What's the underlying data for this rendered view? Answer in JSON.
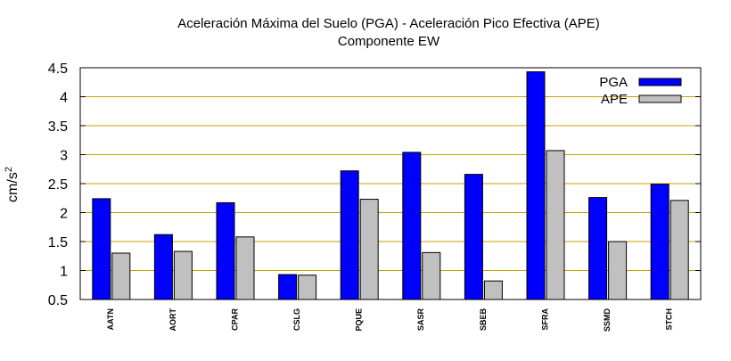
{
  "chart_data": {
    "type": "bar",
    "title": "Aceleración Máxima del Suelo (PGA) -  Aceleración Pico Efectiva (APE)",
    "subtitle": "Componente EW",
    "ylabel": "cm/s",
    "ylabel_sup": "2",
    "xlabel": "",
    "ylim": [
      0.5,
      4.5
    ],
    "yticks": [
      "0.5",
      "1",
      "1.5",
      "2",
      "2.5",
      "3",
      "3.5",
      "4",
      "4.5"
    ],
    "grid": "horizontal",
    "grid_color": "#c8a000",
    "legend_position": "top-right",
    "categories": [
      "AATN",
      "AORT",
      "CPAR",
      "CSLG",
      "PQUE",
      "SASR",
      "SBEB",
      "SFRA",
      "SSMD",
      "STCH"
    ],
    "series": [
      {
        "name": "PGA",
        "color": "#0000ff",
        "values": [
          2.24,
          1.62,
          2.17,
          0.93,
          2.72,
          3.04,
          2.66,
          4.43,
          2.26,
          2.49
        ]
      },
      {
        "name": "APE",
        "color": "#c0c0c0",
        "values": [
          1.3,
          1.33,
          1.58,
          0.92,
          2.23,
          1.31,
          0.82,
          3.07,
          1.5,
          2.21
        ]
      }
    ]
  }
}
